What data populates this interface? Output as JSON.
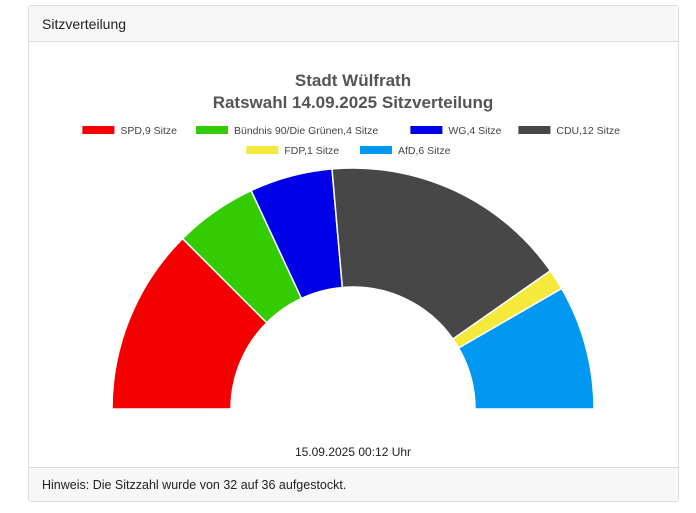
{
  "card": {
    "header_title": "Sitzverteilung",
    "footer_note": "Hinweis: Die Sitzzahl wurde von 32 auf 36 aufgestockt."
  },
  "chart_data": {
    "type": "pie",
    "title": "Stadt Wülfrath",
    "subtitle": "Ratswahl 14.09.2025 Sitzverteilung",
    "timestamp": "15.09.2025 00:12 Uhr",
    "legend_position": "top",
    "total_seats": 36,
    "series": [
      {
        "name": "SPD",
        "label": "SPD,9 Sitze",
        "value": 9,
        "color": "#f50000"
      },
      {
        "name": "Bündnis 90/Die Grünen",
        "label": "Bündnis 90/Die Grünen,4 Sitze",
        "value": 4,
        "color": "#33cc00"
      },
      {
        "name": "WG",
        "label": "WG,4 Sitze",
        "value": 4,
        "color": "#0000e8"
      },
      {
        "name": "CDU",
        "label": "CDU,12 Sitze",
        "value": 12,
        "color": "#474747"
      },
      {
        "name": "FDP",
        "label": "FDP,1 Sitze",
        "value": 1,
        "color": "#f5ea3b"
      },
      {
        "name": "AfD",
        "label": "AfD,6 Sitze",
        "value": 6,
        "color": "#0098f0"
      }
    ]
  }
}
